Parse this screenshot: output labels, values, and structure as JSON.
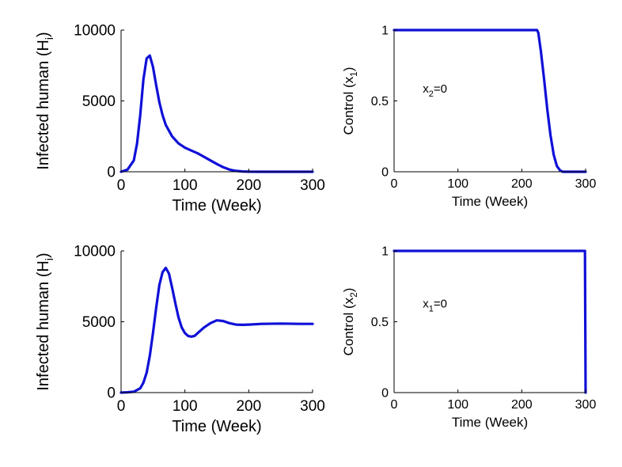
{
  "chart_data": [
    {
      "type": "line",
      "xlabel": "Time (Week)",
      "ylabel": "Infected human (H",
      "ylabel_sub": "i",
      "ylabel_close": ")",
      "xlim": [
        0,
        300
      ],
      "ylim": [
        0,
        10000
      ],
      "xticks": [
        0,
        100,
        200,
        300
      ],
      "yticks": [
        0,
        5000,
        10000
      ],
      "grid": false,
      "annotation": null,
      "series": [
        {
          "color": "#1010d8",
          "x": [
            0,
            10,
            20,
            25,
            30,
            35,
            40,
            45,
            50,
            55,
            60,
            65,
            70,
            80,
            90,
            100,
            110,
            120,
            130,
            140,
            150,
            160,
            170,
            180,
            190,
            200,
            220,
            250,
            300
          ],
          "y": [
            0,
            150,
            800,
            2000,
            4000,
            6500,
            8000,
            8200,
            7400,
            6100,
            4900,
            4000,
            3300,
            2500,
            2000,
            1700,
            1500,
            1300,
            1050,
            800,
            550,
            320,
            150,
            60,
            20,
            5,
            0,
            0,
            0
          ]
        }
      ]
    },
    {
      "type": "line",
      "xlabel": "Time (Week)",
      "ylabel": "Control (x",
      "ylabel_sub": "1",
      "ylabel_close": ")",
      "xlim": [
        0,
        300
      ],
      "ylim": [
        0,
        1
      ],
      "xticks": [
        0,
        100,
        200,
        300
      ],
      "yticks": [
        0,
        0.5,
        1
      ],
      "grid": false,
      "annotation": {
        "text": "x",
        "sub": "2",
        "rest": "=0",
        "x": 45,
        "y": 0.56
      },
      "series": [
        {
          "color": "#1010d8",
          "x": [
            0,
            224,
            226,
            230,
            235,
            240,
            245,
            250,
            255,
            260,
            264,
            300
          ],
          "y": [
            1,
            1,
            0.98,
            0.85,
            0.65,
            0.44,
            0.26,
            0.12,
            0.04,
            0.01,
            0,
            0
          ]
        }
      ]
    },
    {
      "type": "line",
      "xlabel": "Time (Week)",
      "ylabel": "Infected human (H",
      "ylabel_sub": "i",
      "ylabel_close": ")",
      "xlim": [
        0,
        300
      ],
      "ylim": [
        0,
        10000
      ],
      "xticks": [
        0,
        100,
        200,
        300
      ],
      "yticks": [
        0,
        5000,
        10000
      ],
      "grid": false,
      "annotation": null,
      "series": [
        {
          "color": "#1010d8",
          "x": [
            0,
            10,
            20,
            30,
            35,
            40,
            45,
            50,
            55,
            60,
            65,
            70,
            75,
            80,
            85,
            90,
            95,
            100,
            105,
            110,
            115,
            120,
            130,
            140,
            150,
            160,
            170,
            180,
            190,
            200,
            220,
            250,
            280,
            300
          ],
          "y": [
            0,
            20,
            60,
            300,
            700,
            1400,
            2600,
            4200,
            6000,
            7600,
            8500,
            8800,
            8400,
            7400,
            6300,
            5300,
            4600,
            4200,
            4000,
            3950,
            4000,
            4200,
            4600,
            4900,
            5100,
            5050,
            4900,
            4800,
            4780,
            4800,
            4850,
            4870,
            4850,
            4850
          ]
        }
      ]
    },
    {
      "type": "line",
      "xlabel": "Time (Week)",
      "ylabel": "Control (x",
      "ylabel_sub": "2",
      "ylabel_close": ")",
      "xlim": [
        0,
        300
      ],
      "ylim": [
        0,
        1
      ],
      "xticks": [
        0,
        100,
        200,
        300
      ],
      "yticks": [
        0,
        0.5,
        1
      ],
      "grid": false,
      "annotation": {
        "text": "x",
        "sub": "1",
        "rest": "=0",
        "x": 45,
        "y": 0.6
      },
      "series": [
        {
          "color": "#1010d8",
          "x": [
            0,
            299,
            299.5,
            300
          ],
          "y": [
            1,
            1,
            0.5,
            0
          ]
        }
      ]
    }
  ]
}
